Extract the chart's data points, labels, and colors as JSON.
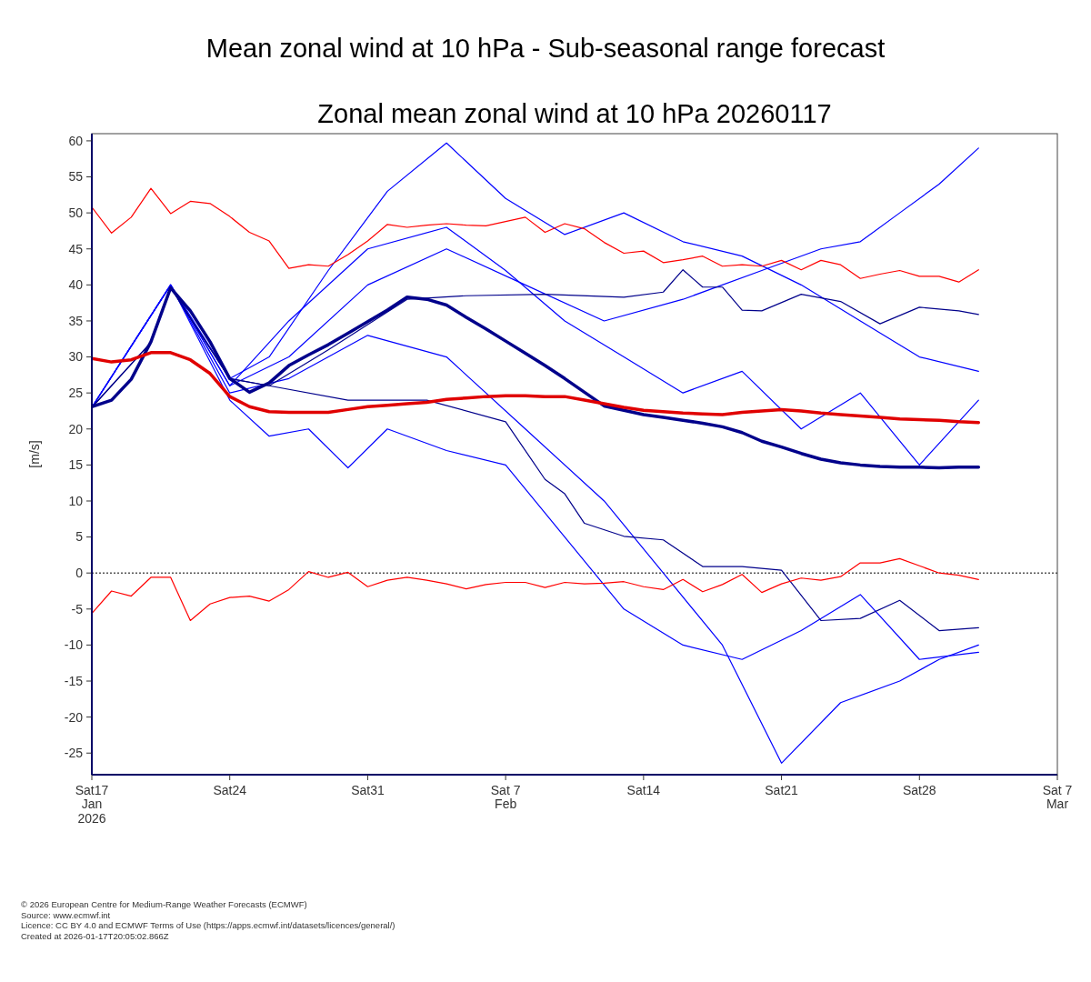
{
  "chart_data": {
    "type": "line",
    "title": "Mean zonal wind at 10 hPa - Sub-seasonal range forecast",
    "subtitle": "Zonal mean zonal wind at 10 hPa 20260117",
    "ylabel": "[m/s]",
    "annotations": [
      "© 2026 European Centre for Medium-Range Weather Forecasts (ECMWF)",
      "Source: www.ecmwf.int",
      "Licence: CC BY 4.0 and ECMWF Terms of Use (https://apps.ecmwf.int/datasets/licences/general/)",
      "Created at 2026-01-17T20:05:02.866Z"
    ],
    "x": [
      "2026-01-17",
      "2026-01-18",
      "2026-01-19",
      "2026-01-20",
      "2026-01-21",
      "2026-01-22",
      "2026-01-23",
      "2026-01-24",
      "2026-01-25",
      "2026-01-26",
      "2026-01-27",
      "2026-01-28",
      "2026-01-29",
      "2026-01-30",
      "2026-01-31",
      "2026-02-01",
      "2026-02-02",
      "2026-02-03",
      "2026-02-04",
      "2026-02-05",
      "2026-02-06",
      "2026-02-07",
      "2026-02-08",
      "2026-02-09",
      "2026-02-10",
      "2026-02-11",
      "2026-02-12",
      "2026-02-13",
      "2026-02-14",
      "2026-02-15",
      "2026-02-16",
      "2026-02-17",
      "2026-02-18",
      "2026-02-19",
      "2026-02-20",
      "2026-02-21",
      "2026-02-22",
      "2026-02-23",
      "2026-02-24",
      "2026-02-25",
      "2026-02-26",
      "2026-02-27",
      "2026-02-28",
      "2026-03-01",
      "2026-03-02",
      "2026-03-03"
    ],
    "series": [
      {
        "color": "#0000ff",
        "x": [
          "2026-01-17",
          "2026-01-21",
          "2026-01-24",
          "2026-01-26",
          "2026-01-29",
          "2026-02-01",
          "2026-02-04",
          "2026-02-07",
          "2026-02-10",
          "2026-02-13",
          "2026-02-16",
          "2026-02-19",
          "2026-02-22",
          "2026-02-25",
          "2026-02-28",
          "2026-03-03"
        ],
        "values": [
          23,
          40,
          27,
          30,
          42,
          53,
          59.7,
          52,
          47,
          50,
          46,
          44,
          40,
          35,
          30,
          28
        ]
      },
      {
        "color": "#0000ff",
        "x": [
          "2026-01-17",
          "2026-01-21",
          "2026-01-24",
          "2026-01-27",
          "2026-01-31",
          "2026-02-04",
          "2026-02-08",
          "2026-02-12",
          "2026-02-16",
          "2026-02-20",
          "2026-02-23",
          "2026-02-25",
          "2026-02-27",
          "2026-03-01",
          "2026-03-03"
        ],
        "values": [
          23,
          40,
          26,
          30,
          40,
          45,
          40,
          35,
          38,
          42,
          45,
          46,
          50,
          54,
          59
        ]
      },
      {
        "color": "#0000ff",
        "x": [
          "2026-01-17",
          "2026-01-21",
          "2026-01-24",
          "2026-01-27",
          "2026-01-31",
          "2026-02-04",
          "2026-02-08",
          "2026-02-12",
          "2026-02-15",
          "2026-02-18",
          "2026-02-21",
          "2026-02-24",
          "2026-02-27",
          "2026-03-01",
          "2026-03-03"
        ],
        "values": [
          23,
          40,
          25,
          27,
          33,
          30,
          20,
          10,
          0,
          -10,
          -26.4,
          -18,
          -15,
          -12,
          -10
        ]
      },
      {
        "color": "#0000ff",
        "x": [
          "2026-01-17",
          "2026-01-21",
          "2026-01-24",
          "2026-01-26",
          "2026-01-28",
          "2026-01-30",
          "2026-02-01",
          "2026-02-04",
          "2026-02-07",
          "2026-02-10",
          "2026-02-13",
          "2026-02-16",
          "2026-02-19",
          "2026-02-22",
          "2026-02-25",
          "2026-02-28",
          "2026-03-03"
        ],
        "values": [
          23,
          40,
          24,
          19,
          20,
          14.6,
          20,
          17,
          15,
          5,
          -5,
          -10,
          -12,
          -8,
          -3,
          -12,
          -11
        ]
      },
      {
        "color": "#0000ff",
        "x": [
          "2026-01-17",
          "2026-01-21",
          "2026-01-24",
          "2026-01-27",
          "2026-01-31",
          "2026-02-04",
          "2026-02-07",
          "2026-02-10",
          "2026-02-13",
          "2026-02-16",
          "2026-02-19",
          "2026-02-22",
          "2026-02-25",
          "2026-02-28",
          "2026-03-03"
        ],
        "values": [
          23,
          40,
          26,
          35,
          45,
          48,
          42,
          35,
          30,
          25,
          28,
          20,
          25,
          15,
          24
        ]
      },
      {
        "color": "#00008b",
        "x": [
          "2026-01-17",
          "2026-01-20",
          "2026-01-21",
          "2026-01-24",
          "2026-01-26",
          "2026-01-29",
          "2026-02-02",
          "2026-02-05",
          "2026-02-09",
          "2026-02-13",
          "2026-02-15",
          "2026-02-16",
          "2026-02-17",
          "2026-02-18",
          "2026-02-19",
          "2026-02-20",
          "2026-02-22",
          "2026-02-24",
          "2026-02-26",
          "2026-02-28",
          "2026-03-02",
          "2026-03-03"
        ],
        "values": [
          23,
          32,
          39.6,
          27,
          26,
          31,
          38,
          38.5,
          38.7,
          38.3,
          39,
          42.1,
          39.7,
          39.7,
          36.5,
          36.4,
          38.7,
          37.7,
          34.6,
          36.9,
          36.4,
          35.9
        ]
      },
      {
        "color": "#00008b",
        "x": [
          "2026-01-17",
          "2026-01-20",
          "2026-01-21",
          "2026-01-24",
          "2026-01-26",
          "2026-01-30",
          "2026-02-03",
          "2026-02-07",
          "2026-02-09",
          "2026-02-10",
          "2026-02-11",
          "2026-02-13",
          "2026-02-15",
          "2026-02-17",
          "2026-02-19",
          "2026-02-21",
          "2026-02-23",
          "2026-02-25",
          "2026-02-27",
          "2026-03-01",
          "2026-03-03"
        ],
        "values": [
          23,
          32,
          39.6,
          27,
          26,
          24,
          24,
          21,
          13,
          11,
          6.9,
          5.1,
          4.6,
          0.9,
          0.9,
          0.4,
          -6.6,
          -6.3,
          -3.8,
          -8,
          -7.6
        ]
      },
      {
        "color": "#ff0000",
        "values": [
          50.8,
          47.2,
          49.4,
          53.4,
          49.9,
          51.6,
          51.3,
          49.5,
          47.3,
          46.1,
          42.3,
          42.8,
          42.6,
          44.2,
          46.1,
          48.4,
          48.0,
          48.3,
          48.5,
          48.3,
          48.2,
          48.8,
          49.4,
          47.3,
          48.5,
          47.8,
          45.9,
          44.4,
          44.7,
          43.1,
          43.5,
          44.0,
          42.6,
          42.8,
          42.6,
          43.4,
          42.1,
          43.4,
          42.8,
          40.9,
          41.5,
          42.0,
          41.2,
          41.2,
          40.4,
          42.1
        ]
      },
      {
        "color": "#ff0000",
        "values": [
          -5.6,
          -2.5,
          -3.2,
          -0.6,
          -0.6,
          -6.6,
          -4.3,
          -3.4,
          -3.2,
          -3.9,
          -2.3,
          0.2,
          -0.6,
          0.1,
          -1.9,
          -1.0,
          -0.6,
          -1.0,
          -1.5,
          -2.2,
          -1.6,
          -1.3,
          -1.3,
          -2.0,
          -1.3,
          -1.5,
          -1.4,
          -1.2,
          -1.9,
          -2.3,
          -0.9,
          -2.6,
          -1.6,
          -0.2,
          -2.7,
          -1.5,
          -0.7,
          -1.0,
          -0.5,
          1.4,
          1.4,
          2.0,
          1.0,
          0.0,
          -0.3,
          -0.9
        ]
      },
      {
        "color": "#00008b",
        "values": [
          23.1,
          24.0,
          26.9,
          32.1,
          39.6,
          36.4,
          32.1,
          27.0,
          25.1,
          26.4,
          28.8,
          30.3,
          31.7,
          33.3,
          34.9,
          36.5,
          38.3,
          38.0,
          37.2,
          35.5,
          33.9,
          32.2,
          30.5,
          28.8,
          27.0,
          25.1,
          23.2,
          22.6,
          22.0,
          21.6,
          21.2,
          20.8,
          20.3,
          19.5,
          18.3,
          17.5,
          16.6,
          15.8,
          15.3,
          15.0,
          14.8,
          14.7,
          14.7,
          14.6,
          14.7,
          14.7
        ]
      },
      {
        "color": "#e00000",
        "values": [
          29.8,
          29.3,
          29.6,
          30.6,
          30.6,
          29.6,
          27.7,
          24.5,
          23.1,
          22.4,
          22.3,
          22.3,
          22.3,
          22.7,
          23.1,
          23.3,
          23.5,
          23.7,
          24.1,
          24.3,
          24.5,
          24.6,
          24.6,
          24.5,
          24.5,
          24.0,
          23.5,
          23.0,
          22.6,
          22.4,
          22.2,
          22.1,
          22.0,
          22.3,
          22.5,
          22.7,
          22.5,
          22.2,
          22.0,
          21.8,
          21.6,
          21.4,
          21.3,
          21.2,
          21.0,
          20.9
        ]
      }
    ],
    "xlim": [
      "2026-01-17",
      "2026-03-07"
    ],
    "xticks": [
      {
        "value": "2026-01-17",
        "label": "Sat17\nJan\n2026"
      },
      {
        "value": "2026-01-24",
        "label": "Sat24"
      },
      {
        "value": "2026-01-31",
        "label": "Sat31"
      },
      {
        "value": "2026-02-07",
        "label": "Sat 7\nFeb"
      },
      {
        "value": "2026-02-14",
        "label": "Sat14"
      },
      {
        "value": "2026-02-21",
        "label": "Sat21"
      },
      {
        "value": "2026-02-28",
        "label": "Sat28"
      },
      {
        "value": "2026-03-07",
        "label": "Sat 7\nMar"
      }
    ],
    "ylim": [
      -28,
      61
    ],
    "yticks": [
      -25,
      -20,
      -15,
      -10,
      -5,
      0,
      5,
      10,
      15,
      20,
      25,
      30,
      35,
      40,
      45,
      50,
      55,
      60
    ],
    "ref_lines": [
      {
        "axis": "y",
        "value": 0,
        "color": "#555555",
        "line_style": "dotted"
      }
    ],
    "grid": false
  }
}
